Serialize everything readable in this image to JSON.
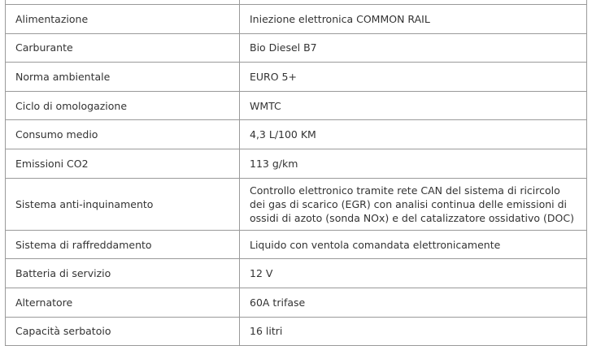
{
  "table": {
    "rows": [
      [
        "Alimentazione",
        "Iniezione elettronica COMMON RAIL"
      ],
      [
        "Carburante",
        "Bio Diesel B7"
      ],
      [
        "Norma ambientale",
        "EURO 5+"
      ],
      [
        "Ciclo di omologazione",
        "WMTC"
      ],
      [
        "Consumo medio",
        "4,3 L/100 KM"
      ],
      [
        "Emissioni CO2",
        "113 g/km"
      ],
      [
        "Sistema anti-inquinamento",
        [
          "Controllo elettronico tramite rete CAN del sistema di ricircolo",
          "dei gas di scarico (EGR) con analisi continua delle emissioni di",
          "ossidi di azoto (sonda NOx) e del catalizzatore ossidativo (DOC)"
        ]
      ],
      [
        "Sistema di raffreddamento",
        "Liquido con ventola comandata elettronicamente"
      ],
      [
        "Batteria di servizio",
        "12 V"
      ],
      [
        "Alternatore",
        "60A trifase"
      ],
      [
        "Capacità serbatoio",
        "16 litri"
      ]
    ]
  }
}
